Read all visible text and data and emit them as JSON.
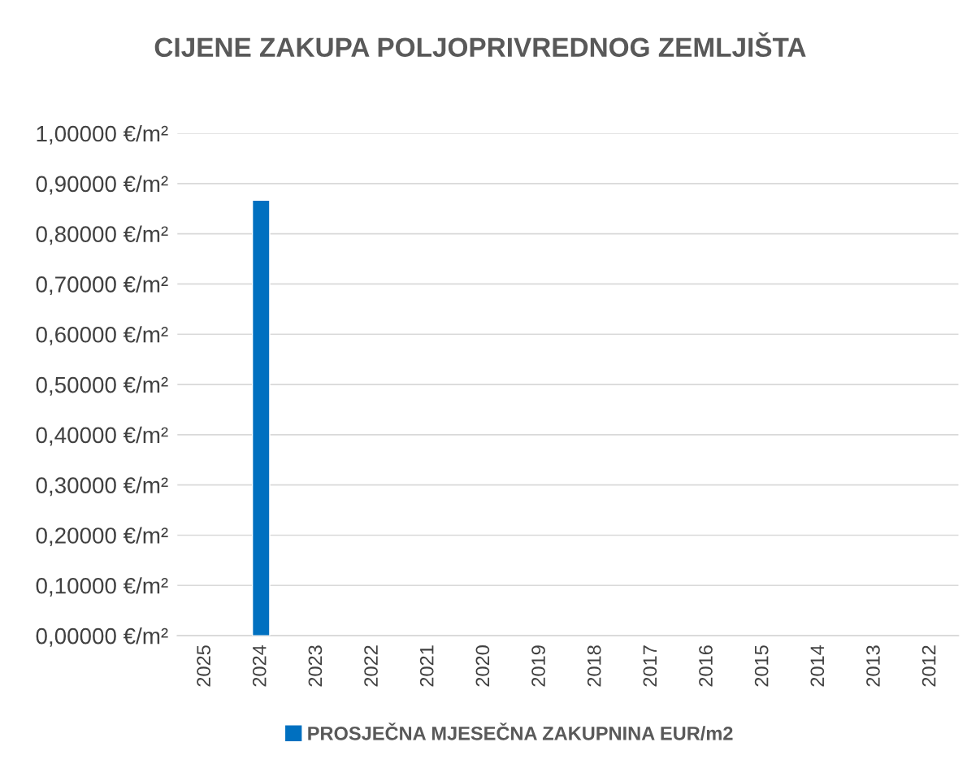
{
  "chart_data": {
    "type": "bar",
    "title": "CIJENE ZAKUPA POLJOPRIVREDNOG ZEMLJIŠTA",
    "categories": [
      "2025",
      "2024",
      "2023",
      "2022",
      "2021",
      "2020",
      "2019",
      "2018",
      "2017",
      "2016",
      "2015",
      "2014",
      "2013",
      "2012"
    ],
    "series": [
      {
        "name": "PROSJEČNA MJESEČNA ZAKUPNINA EUR/m2",
        "color": "#0070c0",
        "values": [
          null,
          0.867,
          null,
          null,
          null,
          null,
          null,
          null,
          null,
          null,
          null,
          null,
          null,
          null
        ]
      }
    ],
    "ylim": [
      0,
      1
    ],
    "yticks": [
      {
        "value": 0,
        "label": "0,00000 €/m²"
      },
      {
        "value": 0.1,
        "label": "0,10000 €/m²"
      },
      {
        "value": 0.2,
        "label": "0,20000 €/m²"
      },
      {
        "value": 0.3,
        "label": "0,30000 €/m²"
      },
      {
        "value": 0.4,
        "label": "0,40000 €/m²"
      },
      {
        "value": 0.5,
        "label": "0,50000 €/m²"
      },
      {
        "value": 0.6,
        "label": "0,60000 €/m²"
      },
      {
        "value": 0.7,
        "label": "0,70000 €/m²"
      },
      {
        "value": 0.8,
        "label": "0,80000 €/m²"
      },
      {
        "value": 0.9,
        "label": "0,90000 €/m²"
      },
      {
        "value": 1,
        "label": "1,00000 €/m²"
      }
    ],
    "grid": "y",
    "legend": "bottom"
  }
}
